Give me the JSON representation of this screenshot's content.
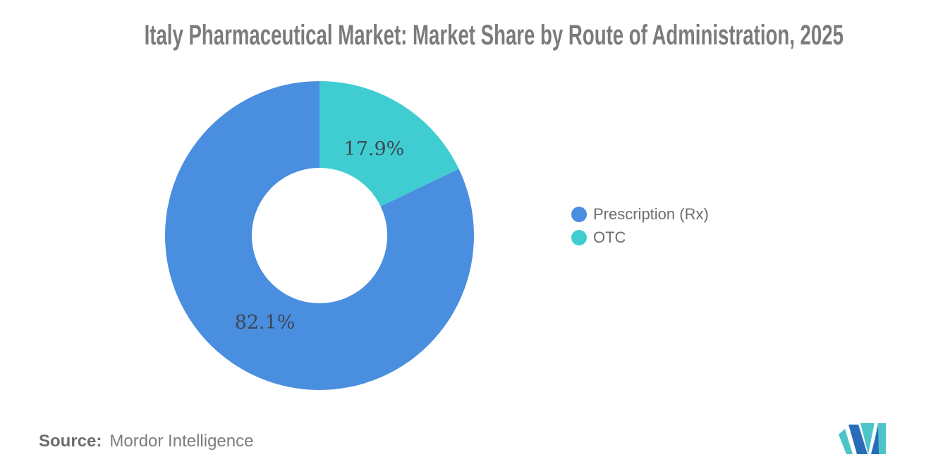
{
  "title": "Italy Pharmaceutical Market: Market Share by Route of Administration, 2025",
  "chart_data": {
    "type": "pie",
    "subtype": "donut",
    "title": "Italy Pharmaceutical Market: Market Share by Route of Administration, 2025",
    "slices": [
      {
        "label": "Prescription (Rx)",
        "value": 82.1,
        "display": "82.1%",
        "color": "#4a8ee0"
      },
      {
        "label": "OTC",
        "value": 17.9,
        "display": "17.9%",
        "color": "#40cdd2"
      }
    ],
    "hole_ratio": 0.44,
    "start_position": "12 o'clock, OTC wedge clockwise from top, Prescription fills remainder",
    "data_label_color": "#3c4852",
    "legend_position": "right",
    "grid": false
  },
  "source": {
    "label": "Source:",
    "value": "Mordor Intelligence"
  },
  "logo": {
    "name": "Mordor Intelligence",
    "teal": "#4dc4c9",
    "blue": "#2a6cb8"
  }
}
